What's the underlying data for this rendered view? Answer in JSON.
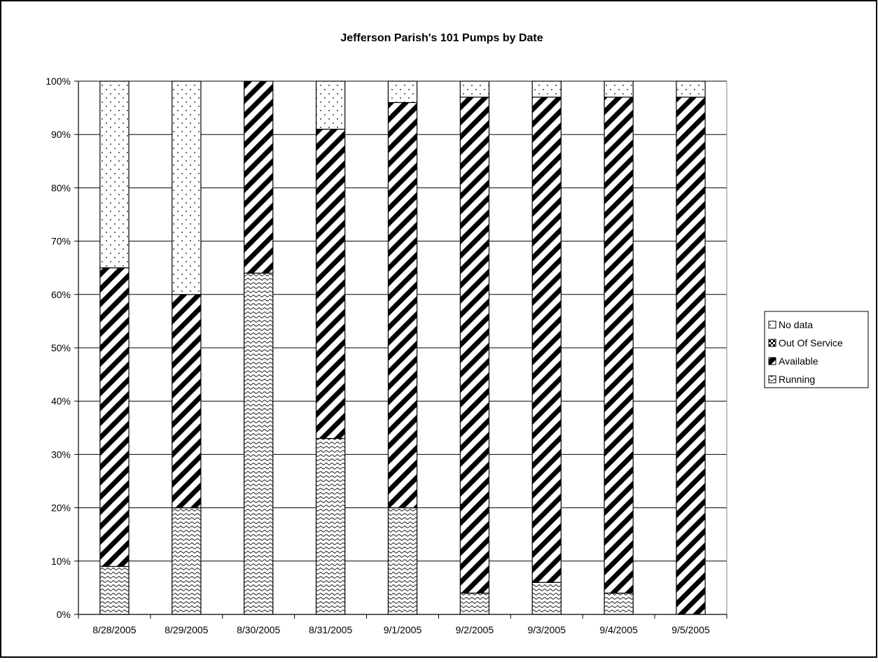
{
  "chart_data": {
    "type": "bar",
    "stacked": "percent",
    "title": "Jefferson Parish's 101 Pumps by Date",
    "xlabel": "",
    "ylabel": "",
    "categories": [
      "8/28/2005",
      "8/29/2005",
      "8/30/2005",
      "8/31/2005",
      "9/1/2005",
      "9/2/2005",
      "9/3/2005",
      "9/4/2005",
      "9/5/2005"
    ],
    "yticks": [
      "0%",
      "10%",
      "20%",
      "30%",
      "40%",
      "50%",
      "60%",
      "70%",
      "80%",
      "90%",
      "100%"
    ],
    "ylim": [
      0,
      100
    ],
    "grid": true,
    "legend_position": "right",
    "legend": [
      "No data",
      "Out Of Service",
      "Available",
      "Running"
    ],
    "series": [
      {
        "name": "Running",
        "pattern": "wave",
        "values": [
          9,
          20,
          64,
          33,
          20,
          4,
          6,
          4,
          0
        ]
      },
      {
        "name": "Out Of Service",
        "pattern": "checker",
        "values": [
          0,
          0,
          0,
          0,
          0,
          0,
          0,
          0,
          0
        ]
      },
      {
        "name": "Available",
        "pattern": "diagonal",
        "values": [
          56,
          40,
          36,
          58,
          76,
          93,
          91,
          93,
          97
        ]
      },
      {
        "name": "No data",
        "pattern": "dots",
        "values": [
          35,
          40,
          0,
          9,
          4,
          3,
          3,
          3,
          3
        ]
      }
    ]
  }
}
